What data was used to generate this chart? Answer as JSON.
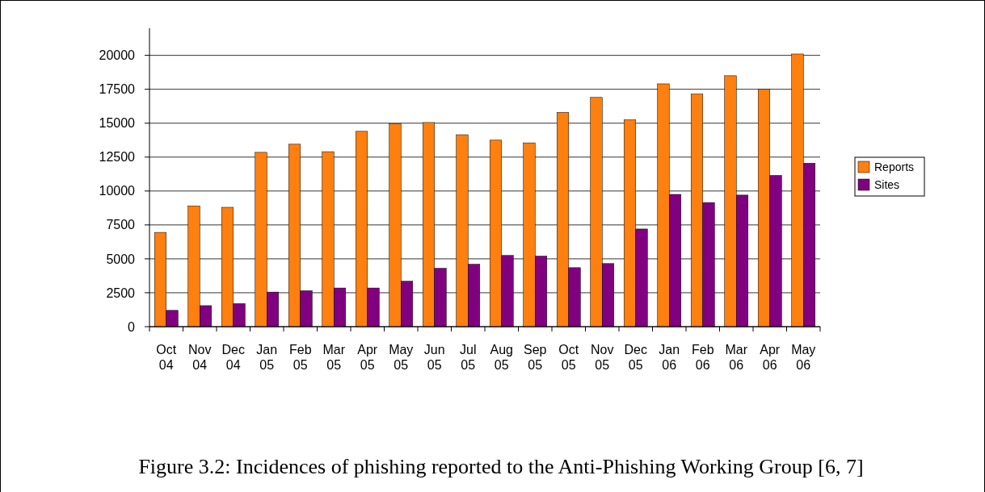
{
  "chart_data": {
    "type": "bar",
    "categories": [
      "Oct 04",
      "Nov 04",
      "Dec 04",
      "Jan 05",
      "Feb 05",
      "Mar 05",
      "Apr 05",
      "May 05",
      "Jun 05",
      "Jul 05",
      "Aug 05",
      "Sep 05",
      "Oct 05",
      "Nov 05",
      "Dec 05",
      "Jan 06",
      "Feb 06",
      "Mar 06",
      "Apr 06",
      "May 06"
    ],
    "series": [
      {
        "name": "Reports",
        "color": "#ff7f0f",
        "values": [
          6950,
          8900,
          8800,
          12850,
          13450,
          12900,
          14400,
          14950,
          15050,
          14150,
          13750,
          13550,
          15800,
          16900,
          15250,
          17900,
          17150,
          18500,
          17500,
          20100
        ]
      },
      {
        "name": "Sites",
        "color": "#800080",
        "values": [
          1200,
          1550,
          1700,
          2550,
          2650,
          2850,
          2850,
          3350,
          4300,
          4600,
          5250,
          5200,
          4350,
          4650,
          7200,
          9750,
          9150,
          9700,
          11150,
          12050
        ]
      }
    ],
    "ylim": [
      0,
      22000
    ],
    "yticks": [
      0,
      2500,
      5000,
      7500,
      10000,
      12500,
      15000,
      17500,
      20000
    ],
    "grid": "y",
    "legend": "right",
    "annotations": [
      "Figure 3.2: Incidences of phishing reported to the Anti-Phishing Working Group [6, 7]"
    ]
  }
}
